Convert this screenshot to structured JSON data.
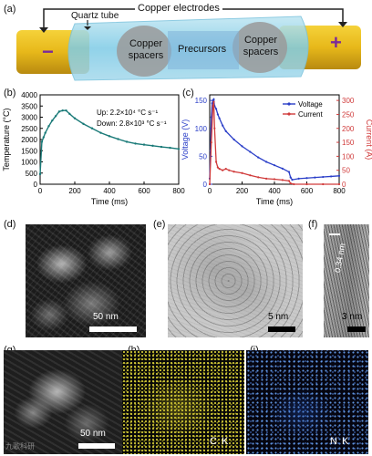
{
  "panel_labels": {
    "a": "(a)",
    "b": "(b)",
    "c": "(c)",
    "d": "(d)",
    "e": "(e)",
    "f": "(f)",
    "g": "(g)",
    "h": "(h)",
    "i": "(i)"
  },
  "schematic": {
    "copper_electrodes": "Copper electrodes",
    "quartz_tube": "Quartz tube",
    "copper_spacers_left": [
      "Copper",
      "spacers"
    ],
    "precursors": "Precursors",
    "copper_spacers_right": [
      "Copper",
      "spacers"
    ],
    "minus": "−",
    "plus": "+"
  },
  "chart_data": [
    {
      "type": "line",
      "panel": "b",
      "xlabel": "Time (ms)",
      "ylabel": "Temperature (°C)",
      "xlim": [
        0,
        800
      ],
      "ylim": [
        0,
        4000
      ],
      "xticks": [
        0,
        200,
        400,
        600,
        800
      ],
      "yticks": [
        0,
        500,
        1000,
        1500,
        2000,
        2500,
        3000,
        3500,
        4000
      ],
      "annotation_up": "Up: 2.2×10⁴ °C s⁻¹",
      "annotation_down": "Down: 2.8×10³ °C s⁻¹",
      "color": "#1a7a78",
      "series": [
        {
          "x": [
            0,
            10,
            20,
            30,
            50,
            70,
            90,
            110,
            130,
            150,
            170,
            200,
            250,
            300,
            350,
            400,
            450,
            500,
            550,
            600,
            650,
            700,
            750,
            800
          ],
          "y": [
            450,
            1900,
            2100,
            2300,
            2600,
            2850,
            3050,
            3250,
            3300,
            3300,
            3150,
            2950,
            2700,
            2500,
            2300,
            2150,
            2020,
            1900,
            1820,
            1770,
            1720,
            1670,
            1630,
            1580
          ]
        }
      ]
    },
    {
      "type": "line",
      "panel": "c",
      "xlabel": "Time (ms)",
      "ylabel_left": "Voltage (V)",
      "ylabel_right": "Current (A)",
      "xlim": [
        0,
        800
      ],
      "ylim_left": [
        0,
        160
      ],
      "ylim_right": [
        0,
        320
      ],
      "xticks": [
        0,
        200,
        400,
        600,
        800
      ],
      "yticks_left": [
        0,
        50,
        100,
        150
      ],
      "yticks_right": [
        0,
        50,
        100,
        150,
        200,
        250,
        300
      ],
      "series": [
        {
          "name": "Voltage",
          "axis": "left",
          "color": "#2a3ec8",
          "x": [
            0,
            5,
            10,
            15,
            20,
            25,
            30,
            40,
            50,
            60,
            80,
            100,
            150,
            200,
            250,
            300,
            350,
            400,
            450,
            490,
            500,
            510,
            550,
            600,
            650,
            700,
            750,
            800
          ],
          "y": [
            10,
            60,
            120,
            145,
            150,
            152,
            140,
            135,
            125,
            118,
            105,
            95,
            80,
            68,
            58,
            48,
            40,
            34,
            28,
            22,
            12,
            8,
            10,
            11,
            12,
            13,
            14,
            15
          ]
        },
        {
          "name": "Current",
          "axis": "right",
          "color": "#d03a3a",
          "x": [
            0,
            10,
            20,
            25,
            30,
            40,
            50,
            60,
            80,
            100,
            120,
            150,
            200,
            250,
            300,
            350,
            400,
            450,
            490,
            500,
            520,
            600,
            700,
            800
          ],
          "y": [
            0,
            150,
            280,
            295,
            200,
            80,
            60,
            55,
            50,
            55,
            50,
            45,
            40,
            32,
            25,
            20,
            18,
            15,
            12,
            3,
            0,
            0,
            0,
            0
          ]
        }
      ]
    }
  ],
  "scale_bars": {
    "d": "50 nm",
    "e": "5 nm",
    "f": "3 nm",
    "f_spacing": "0.34 nm",
    "g": "50 nm"
  },
  "element_labels": {
    "h": "C K",
    "i": "N K"
  },
  "watermark": "九歌科研"
}
